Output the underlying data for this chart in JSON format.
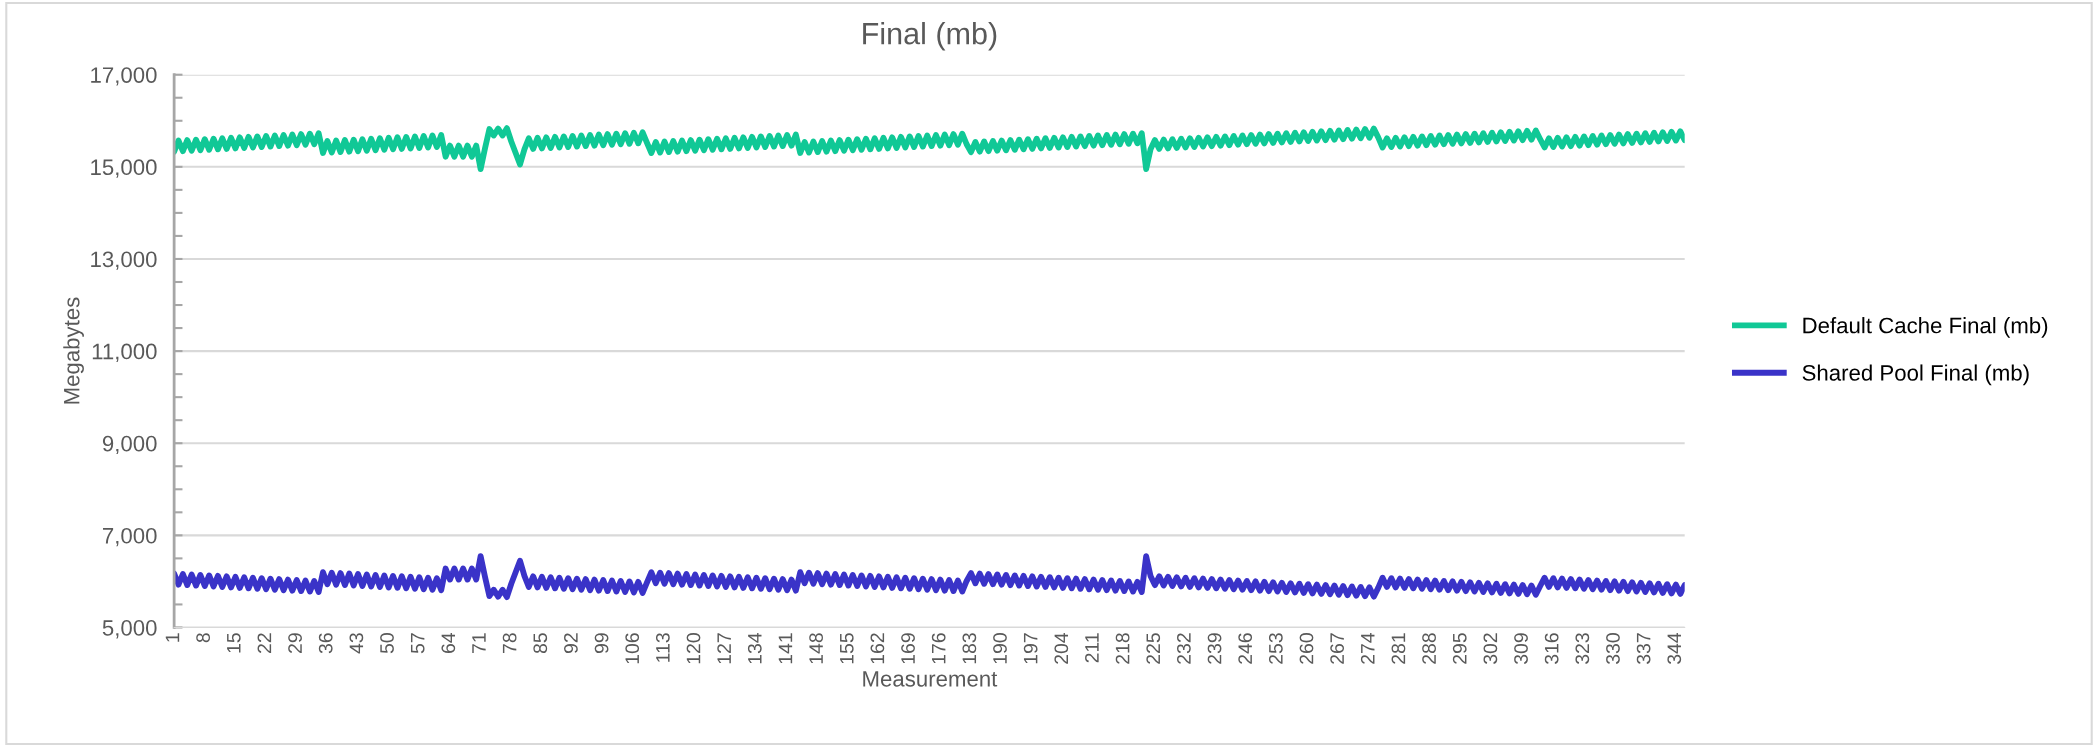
{
  "chart_data": {
    "type": "line",
    "title": "Final (mb)",
    "xlabel": "Measurement",
    "ylabel": "Megabytes",
    "x": [
      1,
      2,
      3,
      4,
      5,
      6,
      7,
      8,
      9,
      10,
      11,
      12,
      13,
      14,
      15,
      16,
      17,
      18,
      19,
      20,
      21,
      22,
      23,
      24,
      25,
      26,
      27,
      28,
      29,
      30,
      31,
      32,
      33,
      34,
      35,
      36,
      37,
      38,
      39,
      40,
      41,
      42,
      43,
      44,
      45,
      46,
      47,
      48,
      49,
      50,
      51,
      52,
      53,
      54,
      55,
      56,
      57,
      58,
      59,
      60,
      61,
      62,
      63,
      64,
      65,
      66,
      67,
      68,
      69,
      70,
      71,
      72,
      73,
      74,
      75,
      76,
      77,
      78,
      79,
      80,
      81,
      82,
      83,
      84,
      85,
      86,
      87,
      88,
      89,
      90,
      91,
      92,
      93,
      94,
      95,
      96,
      97,
      98,
      99,
      100,
      101,
      102,
      103,
      104,
      105,
      106,
      107,
      108,
      109,
      110,
      111,
      112,
      113,
      114,
      115,
      116,
      117,
      118,
      119,
      120,
      121,
      122,
      123,
      124,
      125,
      126,
      127,
      128,
      129,
      130,
      131,
      132,
      133,
      134,
      135,
      136,
      137,
      138,
      139,
      140,
      141,
      142,
      143,
      144,
      145,
      146,
      147,
      148,
      149,
      150,
      151,
      152,
      153,
      154,
      155,
      156,
      157,
      158,
      159,
      160,
      161,
      162,
      163,
      164,
      165,
      166,
      167,
      168,
      169,
      170,
      171,
      172,
      173,
      174,
      175,
      176,
      177,
      178,
      179,
      180,
      181,
      182,
      183,
      184,
      185,
      186,
      187,
      188,
      189,
      190,
      191,
      192,
      193,
      194,
      195,
      196,
      197,
      198,
      199,
      200,
      201,
      202,
      203,
      204,
      205,
      206,
      207,
      208,
      209,
      210,
      211,
      212,
      213,
      214,
      215,
      216,
      217,
      218,
      219,
      220,
      221,
      222,
      223,
      224,
      225,
      226,
      227,
      228,
      229,
      230,
      231,
      232,
      233,
      234,
      235,
      236,
      237,
      238,
      239,
      240,
      241,
      242,
      243,
      244,
      245,
      246,
      247,
      248,
      249,
      250,
      251,
      252,
      253,
      254,
      255,
      256,
      257,
      258,
      259,
      260,
      261,
      262,
      263,
      264,
      265,
      266,
      267,
      268,
      269,
      270,
      271,
      272,
      273,
      274,
      275,
      276,
      277,
      278,
      279,
      280,
      281,
      282,
      283,
      284,
      285,
      286,
      287,
      288,
      289,
      290,
      291,
      292,
      293,
      294,
      295,
      296,
      297,
      298,
      299,
      300,
      301,
      302,
      303,
      304,
      305,
      306,
      307,
      308,
      309,
      310,
      311,
      312,
      313,
      314,
      315,
      316,
      317,
      318,
      319,
      320,
      321,
      322,
      323,
      324,
      325,
      326,
      327,
      328,
      329,
      330,
      331,
      332,
      333,
      334,
      335,
      336,
      337,
      338,
      339,
      340,
      341,
      342,
      343,
      344,
      345,
      346
    ],
    "series": [
      {
        "name": "Default Cache Final (mb)",
        "color": "#10c896",
        "values": [
          15330,
          15570,
          15340,
          15580,
          15350,
          15590,
          15360,
          15600,
          15370,
          15610,
          15380,
          15620,
          15390,
          15630,
          15400,
          15640,
          15410,
          15650,
          15420,
          15660,
          15430,
          15670,
          15440,
          15680,
          15450,
          15690,
          15460,
          15700,
          15470,
          15710,
          15480,
          15720,
          15490,
          15730,
          15300,
          15560,
          15310,
          15570,
          15320,
          15580,
          15330,
          15590,
          15340,
          15600,
          15350,
          15610,
          15360,
          15620,
          15370,
          15630,
          15380,
          15640,
          15390,
          15650,
          15400,
          15660,
          15410,
          15670,
          15420,
          15680,
          15430,
          15690,
          15220,
          15460,
          15220,
          15460,
          15220,
          15460,
          15220,
          15460,
          14950,
          15400,
          15820,
          15680,
          15830,
          15680,
          15840,
          15550,
          15300,
          15050,
          15380,
          15620,
          15390,
          15630,
          15400,
          15640,
          15410,
          15650,
          15420,
          15660,
          15430,
          15670,
          15440,
          15680,
          15450,
          15690,
          15460,
          15700,
          15470,
          15710,
          15480,
          15720,
          15490,
          15730,
          15500,
          15740,
          15510,
          15750,
          15520,
          15300,
          15540,
          15310,
          15550,
          15320,
          15560,
          15330,
          15570,
          15340,
          15580,
          15350,
          15590,
          15360,
          15600,
          15370,
          15610,
          15380,
          15620,
          15390,
          15630,
          15400,
          15640,
          15410,
          15650,
          15420,
          15660,
          15430,
          15670,
          15440,
          15680,
          15450,
          15690,
          15460,
          15700,
          15300,
          15540,
          15310,
          15550,
          15320,
          15560,
          15330,
          15570,
          15340,
          15580,
          15350,
          15590,
          15360,
          15600,
          15370,
          15610,
          15380,
          15620,
          15390,
          15630,
          15400,
          15640,
          15410,
          15650,
          15420,
          15660,
          15430,
          15670,
          15440,
          15680,
          15450,
          15690,
          15460,
          15700,
          15470,
          15710,
          15480,
          15720,
          15490,
          15320,
          15540,
          15330,
          15550,
          15340,
          15560,
          15350,
          15570,
          15360,
          15580,
          15370,
          15590,
          15380,
          15600,
          15390,
          15610,
          15400,
          15620,
          15410,
          15630,
          15420,
          15640,
          15430,
          15650,
          15440,
          15660,
          15450,
          15670,
          15460,
          15680,
          15470,
          15690,
          15480,
          15700,
          15490,
          15710,
          15500,
          15720,
          15510,
          15730,
          14950,
          15380,
          15580,
          15390,
          15590,
          15400,
          15600,
          15410,
          15610,
          15420,
          15620,
          15430,
          15630,
          15440,
          15640,
          15450,
          15650,
          15460,
          15660,
          15470,
          15670,
          15480,
          15680,
          15490,
          15690,
          15500,
          15700,
          15510,
          15710,
          15520,
          15720,
          15530,
          15730,
          15540,
          15740,
          15550,
          15750,
          15560,
          15760,
          15570,
          15770,
          15580,
          15780,
          15590,
          15790,
          15600,
          15800,
          15610,
          15810,
          15620,
          15820,
          15630,
          15830,
          15640,
          15420,
          15620,
          15430,
          15630,
          15440,
          15640,
          15450,
          15650,
          15460,
          15660,
          15470,
          15670,
          15480,
          15680,
          15490,
          15690,
          15500,
          15700,
          15510,
          15710,
          15520,
          15720,
          15530,
          15730,
          15540,
          15740,
          15550,
          15750,
          15560,
          15760,
          15570,
          15770,
          15580,
          15780,
          15590,
          15790,
          15600,
          15420,
          15620,
          15430,
          15630,
          15440,
          15640,
          15450,
          15650,
          15460,
          15660,
          15470,
          15670,
          15480,
          15680,
          15490,
          15690,
          15500,
          15700,
          15510,
          15710,
          15520,
          15720,
          15530,
          15730,
          15540,
          15740,
          15550,
          15750,
          15560,
          15760,
          15570,
          15770,
          15580
        ]
      },
      {
        "name": "Shared Pool Final (mb)",
        "color": "#3a33c8",
        "values": [
          6170,
          5930,
          6160,
          5920,
          6150,
          5910,
          6140,
          5900,
          6130,
          5890,
          6120,
          5880,
          6110,
          5870,
          6100,
          5860,
          6090,
          5850,
          6080,
          5840,
          6070,
          5830,
          6060,
          5820,
          6050,
          5810,
          6040,
          5800,
          6030,
          5790,
          6020,
          5780,
          6010,
          5770,
          6200,
          5940,
          6190,
          5930,
          6180,
          5920,
          6170,
          5910,
          6160,
          5900,
          6150,
          5890,
          6140,
          5880,
          6130,
          5870,
          6120,
          5860,
          6110,
          5850,
          6100,
          5840,
          6090,
          5830,
          6080,
          5820,
          6070,
          5810,
          6280,
          6040,
          6280,
          6040,
          6280,
          6040,
          6280,
          6040,
          6550,
          6100,
          5680,
          5820,
          5670,
          5820,
          5660,
          5950,
          6200,
          6450,
          6120,
          5880,
          6110,
          5870,
          6100,
          5860,
          6090,
          5850,
          6080,
          5840,
          6070,
          5830,
          6060,
          5820,
          6050,
          5810,
          6040,
          5800,
          6030,
          5790,
          6020,
          5780,
          6010,
          5770,
          6000,
          5760,
          5990,
          5750,
          5980,
          6200,
          5960,
          6190,
          5950,
          6180,
          5940,
          6170,
          5930,
          6160,
          5920,
          6150,
          5910,
          6140,
          5900,
          6130,
          5890,
          6120,
          5880,
          6110,
          5870,
          6100,
          5860,
          6090,
          5850,
          6080,
          5840,
          6070,
          5830,
          6060,
          5820,
          6050,
          5810,
          6040,
          5800,
          6200,
          5960,
          6190,
          5950,
          6180,
          5940,
          6170,
          5930,
          6160,
          5920,
          6150,
          5910,
          6140,
          5900,
          6130,
          5890,
          6120,
          5880,
          6110,
          5870,
          6100,
          5860,
          6090,
          5850,
          6080,
          5840,
          6070,
          5830,
          6060,
          5820,
          6050,
          5810,
          6040,
          5800,
          6030,
          5790,
          6020,
          5780,
          6010,
          6180,
          5960,
          6170,
          5950,
          6160,
          5940,
          6150,
          5930,
          6140,
          5920,
          6130,
          5910,
          6120,
          5900,
          6110,
          5890,
          6100,
          5880,
          6090,
          5870,
          6080,
          5860,
          6070,
          5850,
          6060,
          5840,
          6050,
          5830,
          6040,
          5820,
          6030,
          5810,
          6020,
          5800,
          6010,
          5790,
          6000,
          5780,
          5990,
          5770,
          6550,
          6120,
          5920,
          6110,
          5910,
          6100,
          5900,
          6090,
          5890,
          6080,
          5880,
          6070,
          5870,
          6060,
          5860,
          6050,
          5850,
          6040,
          5840,
          6030,
          5830,
          6020,
          5820,
          6010,
          5810,
          6000,
          5800,
          5990,
          5790,
          5980,
          5780,
          5970,
          5770,
          5960,
          5760,
          5950,
          5750,
          5940,
          5740,
          5930,
          5730,
          5920,
          5720,
          5910,
          5710,
          5900,
          5700,
          5890,
          5690,
          5880,
          5680,
          5870,
          5670,
          5860,
          6080,
          5880,
          6070,
          5870,
          6060,
          5860,
          6050,
          5850,
          6040,
          5840,
          6030,
          5830,
          6020,
          5820,
          6010,
          5810,
          6000,
          5800,
          5990,
          5790,
          5980,
          5780,
          5970,
          5770,
          5960,
          5760,
          5950,
          5750,
          5940,
          5740,
          5930,
          5730,
          5920,
          5720,
          5910,
          5710,
          5900,
          6080,
          5880,
          6070,
          5870,
          6060,
          5860,
          6050,
          5850,
          6040,
          5840,
          6030,
          5830,
          6020,
          5820,
          6010,
          5810,
          6000,
          5800,
          5990,
          5790,
          5980,
          5780,
          5970,
          5770,
          5960,
          5760,
          5950,
          5750,
          5940,
          5740,
          5930,
          5730,
          5920
        ]
      }
    ],
    "xlim": [
      1,
      346
    ],
    "xticks": [
      1,
      8,
      15,
      22,
      29,
      36,
      43,
      50,
      57,
      64,
      71,
      78,
      85,
      92,
      99,
      106,
      113,
      120,
      127,
      134,
      141,
      148,
      155,
      162,
      169,
      176,
      183,
      190,
      197,
      204,
      211,
      218,
      225,
      232,
      239,
      246,
      253,
      260,
      267,
      274,
      281,
      288,
      295,
      302,
      309,
      316,
      323,
      330,
      337,
      344
    ],
    "ylim": [
      5000,
      17000
    ],
    "yticks": [
      {
        "value": 5000,
        "label": "5,000"
      },
      {
        "value": 5500,
        "label": null
      },
      {
        "value": 6000,
        "label": null
      },
      {
        "value": 6500,
        "label": null
      },
      {
        "value": 7000,
        "label": "7,000"
      },
      {
        "value": 7500,
        "label": null
      },
      {
        "value": 8000,
        "label": null
      },
      {
        "value": 8500,
        "label": null
      },
      {
        "value": 9000,
        "label": "9,000"
      },
      {
        "value": 9500,
        "label": null
      },
      {
        "value": 10000,
        "label": null
      },
      {
        "value": 10500,
        "label": null
      },
      {
        "value": 11000,
        "label": "11,000"
      },
      {
        "value": 11500,
        "label": null
      },
      {
        "value": 12000,
        "label": null
      },
      {
        "value": 12500,
        "label": null
      },
      {
        "value": 13000,
        "label": "13,000"
      },
      {
        "value": 13500,
        "label": null
      },
      {
        "value": 14000,
        "label": null
      },
      {
        "value": 14500,
        "label": null
      },
      {
        "value": 15000,
        "label": "15,000"
      },
      {
        "value": 15500,
        "label": null
      },
      {
        "value": 16000,
        "label": null
      },
      {
        "value": 16500,
        "label": null
      },
      {
        "value": 17000,
        "label": "17,000"
      }
    ],
    "grid": "y",
    "legend": "right",
    "marker": "none",
    "line_style": "solid"
  }
}
